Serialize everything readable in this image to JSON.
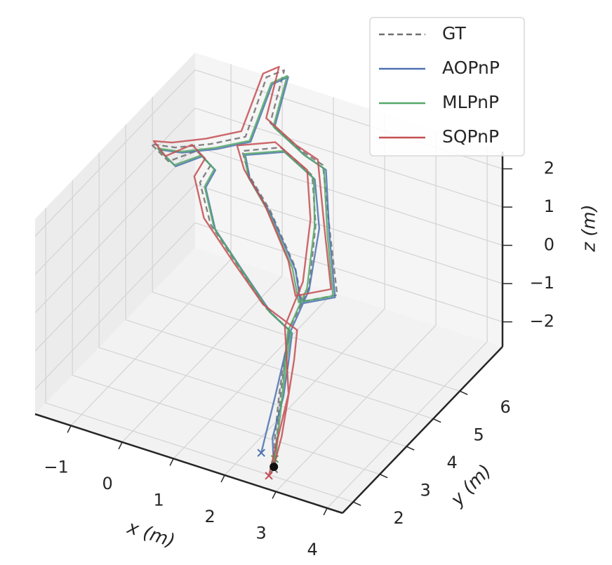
{
  "chart_data": {
    "type": "line3d",
    "xlabel": "x (m)",
    "ylabel": "y (m)",
    "zlabel": "z (m)",
    "xlim": [
      -1.7,
      4.3
    ],
    "ylim": [
      1.6,
      7.6
    ],
    "zlim": [
      -2.65,
      2.45
    ],
    "xticks": [
      {
        "value": -1,
        "label": "−1"
      },
      0,
      1,
      2,
      3,
      4
    ],
    "yticks": [
      2,
      3,
      4,
      5,
      6
    ],
    "zticks": [
      {
        "value": -2,
        "label": "−2"
      },
      {
        "value": -1,
        "label": "−1"
      },
      0,
      1,
      2
    ],
    "grid": true,
    "legend": "upper right",
    "series": [
      {
        "name": "GT",
        "color": "#707070",
        "linestyle": "dashed",
        "x": [
          2.96,
          2.75,
          2.52,
          2.36,
          2.24,
          1.65,
          0.79,
          -0.07,
          -0.59,
          -0.51,
          -0.89,
          -1.36,
          -1.83,
          -1.33,
          -0.67,
          -0.04,
          -0.07,
          0.22,
          0.34,
          1.16,
          1.68,
          2.31,
          2.92,
          2.28,
          1.89,
          0.99,
          0.32,
          0.0,
          0.73,
          1.55,
          1.98,
          2.32,
          2.24,
          2.55,
          2.98
        ],
        "y": [
          1.6,
          2.05,
          2.65,
          3.15,
          3.55,
          3.85,
          4.45,
          5.05,
          5.65,
          5.9,
          6.1,
          5.95,
          6.2,
          6.15,
          6.2,
          6.3,
          7.15,
          7.25,
          6.5,
          6.1,
          5.9,
          4.95,
          4.05,
          3.95,
          4.45,
          5.25,
          5.75,
          6.1,
          6.15,
          5.75,
          5.05,
          4.15,
          3.55,
          2.65,
          1.57
        ],
        "z": [
          -2.02,
          -1.61,
          -1.04,
          -0.56,
          -0.16,
          -0.08,
          0.21,
          0.51,
          0.95,
          1.26,
          1.32,
          0.95,
          1.02,
          1.18,
          1.52,
          1.91,
          2.84,
          3.07,
          2.29,
          2.2,
          2.2,
          1.42,
          0.68,
          0.3,
          0.68,
          1.18,
          1.45,
          1.7,
          2.07,
          1.98,
          1.39,
          0.54,
          -0.16,
          -1.03,
          -2.05
        ]
      },
      {
        "name": "AOPnP",
        "color": "#4c72b0",
        "linestyle": "solid",
        "x": [
          2.96,
          2.7,
          2.6,
          2.44,
          2.3,
          1.74,
          0.88,
          0.02,
          -0.48,
          -0.42,
          -0.78,
          -1.22,
          -1.68,
          -1.2,
          -0.55,
          0.06,
          0.04,
          0.3,
          0.42,
          1.24,
          1.74,
          2.3,
          2.88,
          2.26,
          1.9,
          1.0,
          0.33,
          0.06,
          0.8,
          1.6,
          2.05,
          2.32,
          2.26,
          2.45,
          2.61
        ],
        "y": [
          1.6,
          2.05,
          2.65,
          3.15,
          3.55,
          3.85,
          4.45,
          5.05,
          5.65,
          5.9,
          6.1,
          5.95,
          6.2,
          6.15,
          6.2,
          6.3,
          7.15,
          7.25,
          6.5,
          6.1,
          5.9,
          4.95,
          4.05,
          3.95,
          4.45,
          5.25,
          5.75,
          6.1,
          6.15,
          5.75,
          5.05,
          4.15,
          3.55,
          2.65,
          1.8
        ],
        "z": [
          -2.06,
          -1.7,
          -1.1,
          -0.62,
          -0.22,
          -0.16,
          0.12,
          0.42,
          0.86,
          1.16,
          1.22,
          0.88,
          0.94,
          1.1,
          1.44,
          1.82,
          2.7,
          2.93,
          2.2,
          2.1,
          2.1,
          1.34,
          0.6,
          0.24,
          0.6,
          1.1,
          1.38,
          1.62,
          1.98,
          1.9,
          1.32,
          0.48,
          -0.22,
          -1.1,
          -1.95
        ]
      },
      {
        "name": "MLPnP",
        "color": "#55a868",
        "linestyle": "solid",
        "x": [
          2.98,
          2.8,
          2.58,
          2.4,
          2.28,
          1.7,
          0.85,
          0.0,
          -0.5,
          -0.44,
          -0.8,
          -1.25,
          -1.7,
          -1.22,
          -0.58,
          0.04,
          0.02,
          0.28,
          0.4,
          1.2,
          1.7,
          2.26,
          2.84,
          2.22,
          1.84,
          0.96,
          0.3,
          0.04,
          0.78,
          1.58,
          1.96,
          2.28,
          2.22,
          2.58,
          2.9
        ],
        "y": [
          1.6,
          2.05,
          2.65,
          3.15,
          3.55,
          3.85,
          4.45,
          5.05,
          5.65,
          5.9,
          6.1,
          5.95,
          6.2,
          6.15,
          6.2,
          6.3,
          7.15,
          7.25,
          6.5,
          6.1,
          5.9,
          4.95,
          4.05,
          3.95,
          4.45,
          5.25,
          5.75,
          6.1,
          6.15,
          5.75,
          5.05,
          4.15,
          3.55,
          2.65,
          1.75
        ],
        "z": [
          -2.06,
          -1.66,
          -1.08,
          -0.6,
          -0.2,
          -0.14,
          0.14,
          0.44,
          0.88,
          1.18,
          1.24,
          0.9,
          0.96,
          1.12,
          1.46,
          1.84,
          2.72,
          2.95,
          2.22,
          2.12,
          2.12,
          1.36,
          0.62,
          0.26,
          0.62,
          1.12,
          1.4,
          1.64,
          2.0,
          1.92,
          1.34,
          0.5,
          -0.2,
          -1.06,
          -1.95
        ]
      },
      {
        "name": "SQPnP",
        "color": "#c44e52",
        "linestyle": "solid",
        "x": [
          2.96,
          2.88,
          2.7,
          2.55,
          2.4,
          1.58,
          0.68,
          -0.2,
          -0.7,
          -0.62,
          -0.98,
          -1.42,
          -1.78,
          -1.4,
          -0.76,
          -0.12,
          -0.14,
          0.12,
          0.26,
          1.06,
          1.58,
          2.2,
          2.8,
          2.16,
          1.76,
          0.88,
          0.22,
          -0.1,
          0.62,
          1.45,
          1.88,
          2.2,
          2.16,
          2.7,
          2.93
        ],
        "y": [
          1.6,
          2.05,
          2.65,
          3.15,
          3.55,
          3.85,
          4.45,
          5.05,
          5.65,
          5.9,
          6.1,
          5.95,
          6.2,
          6.15,
          6.2,
          6.3,
          7.15,
          7.25,
          6.5,
          6.1,
          5.9,
          4.95,
          4.05,
          3.95,
          4.45,
          5.25,
          5.75,
          6.1,
          6.15,
          5.75,
          5.05,
          4.15,
          3.55,
          2.65,
          1.47
        ],
        "z": [
          -2.0,
          -1.58,
          -1.02,
          -0.52,
          -0.1,
          0.0,
          0.3,
          0.62,
          1.06,
          1.38,
          1.44,
          1.06,
          1.12,
          1.28,
          1.62,
          2.02,
          2.9,
          3.12,
          2.38,
          2.3,
          2.3,
          1.52,
          0.78,
          0.4,
          0.78,
          1.3,
          1.56,
          1.8,
          2.16,
          2.08,
          1.48,
          0.64,
          -0.1,
          -0.98,
          -2.17
        ]
      }
    ]
  }
}
